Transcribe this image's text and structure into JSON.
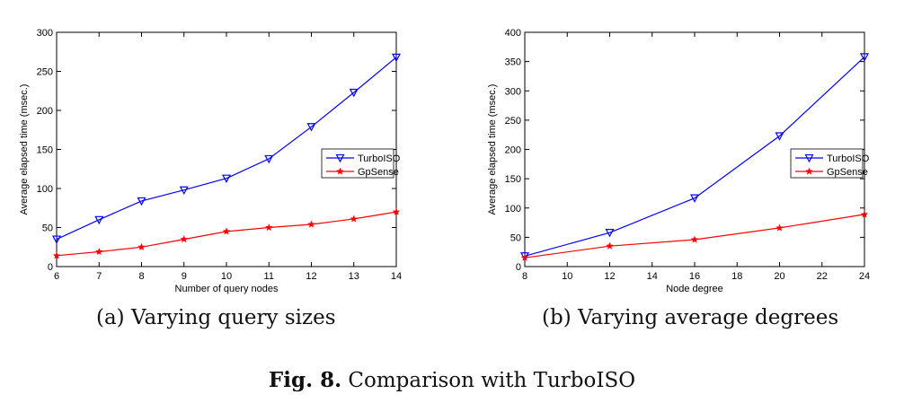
{
  "chart_data": [
    {
      "type": "line",
      "xlabel": "Number of query nodes",
      "ylabel": "Average elapsed time (msec.)",
      "xlim": [
        6,
        14
      ],
      "ylim": [
        0,
        300
      ],
      "xticks": [
        6,
        7,
        8,
        9,
        10,
        11,
        12,
        13,
        14
      ],
      "yticks": [
        0,
        50,
        100,
        150,
        200,
        250,
        300
      ],
      "legend": "right",
      "grid": false,
      "series": [
        {
          "name": "TurboISO",
          "color": "#0000ff",
          "marker": "triangle-down",
          "x": [
            6,
            7,
            8,
            9,
            10,
            11,
            12,
            13,
            14
          ],
          "y": [
            35,
            60,
            84,
            98,
            113,
            138,
            179,
            223,
            268
          ]
        },
        {
          "name": "GpSense",
          "color": "#ff0000",
          "marker": "star",
          "x": [
            6,
            7,
            8,
            9,
            10,
            11,
            12,
            13,
            14
          ],
          "y": [
            14,
            19,
            25,
            35,
            45,
            50,
            54,
            61,
            70
          ]
        }
      ]
    },
    {
      "type": "line",
      "xlabel": "Node degree",
      "ylabel": "Average elapsed time (msec.)",
      "xlim": [
        8,
        24
      ],
      "ylim": [
        0,
        400
      ],
      "xticks": [
        8,
        10,
        12,
        14,
        16,
        18,
        20,
        22,
        24
      ],
      "yticks": [
        0,
        50,
        100,
        150,
        200,
        250,
        300,
        350,
        400
      ],
      "legend": "right",
      "grid": false,
      "series": [
        {
          "name": "TurboISO",
          "color": "#0000ff",
          "marker": "triangle-down",
          "x": [
            8,
            12,
            16,
            20,
            24
          ],
          "y": [
            18,
            58,
            117,
            223,
            358
          ]
        },
        {
          "name": "GpSense",
          "color": "#ff0000",
          "marker": "star",
          "x": [
            8,
            12,
            16,
            20,
            24
          ],
          "y": [
            15,
            35,
            46,
            66,
            89
          ]
        }
      ]
    }
  ],
  "captions": {
    "a": "(a) Varying query sizes",
    "b": "(b) Varying average degrees"
  },
  "figure": {
    "label": "Fig. 8.",
    "text": "Comparison with TurboISO"
  }
}
